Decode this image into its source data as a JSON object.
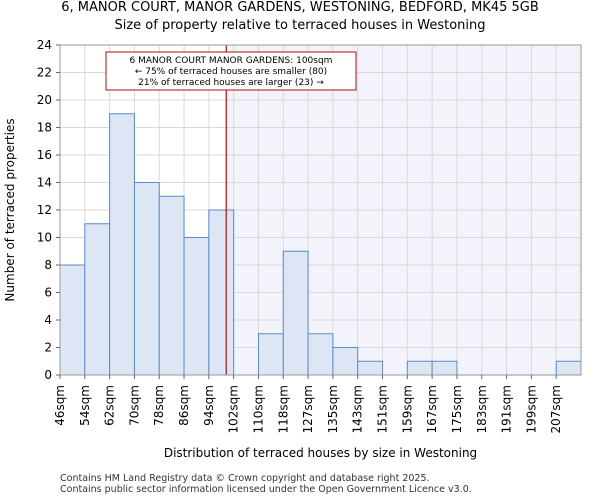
{
  "header": {
    "title": "6, MANOR COURT, MANOR GARDENS, WESTONING, BEDFORD, MK45 5GB",
    "subtitle": "Size of property relative to terraced houses in Westoning"
  },
  "chart_data": {
    "type": "bar",
    "title": "Size of property relative to terraced houses in Westoning",
    "xlabel": "Distribution of terraced houses by size in Westoning",
    "ylabel": "Number of terraced properties",
    "categories": [
      "46sqm",
      "54sqm",
      "62sqm",
      "70sqm",
      "78sqm",
      "86sqm",
      "94sqm",
      "102sqm",
      "110sqm",
      "118sqm",
      "127sqm",
      "135sqm",
      "143sqm",
      "151sqm",
      "159sqm",
      "167sqm",
      "175sqm",
      "183sqm",
      "191sqm",
      "199sqm",
      "207sqm"
    ],
    "values": [
      8,
      11,
      19,
      14,
      13,
      10,
      12,
      0,
      3,
      9,
      3,
      2,
      1,
      0,
      1,
      1,
      0,
      0,
      0,
      0,
      1
    ],
    "ylim": [
      0,
      24
    ],
    "yticks": [
      0,
      2,
      4,
      6,
      8,
      10,
      12,
      14,
      16,
      18,
      20,
      22,
      24
    ],
    "grid": true,
    "bar_color": "#dce6f5",
    "bar_edge_color": "#5b8bc8",
    "marker_line_color": "#aa1111",
    "marker_position_bin": 6.7,
    "annotation": {
      "line1": "6 MANOR COURT MANOR GARDENS: 100sqm",
      "line2": "← 75% of terraced houses are smaller (80)",
      "line3": "21% of terraced houses are larger (23) →"
    }
  },
  "footer": {
    "line1": "Contains HM Land Registry data © Crown copyright and database right 2025.",
    "line2": "Contains public sector information licensed under the Open Government Licence v3.0."
  }
}
